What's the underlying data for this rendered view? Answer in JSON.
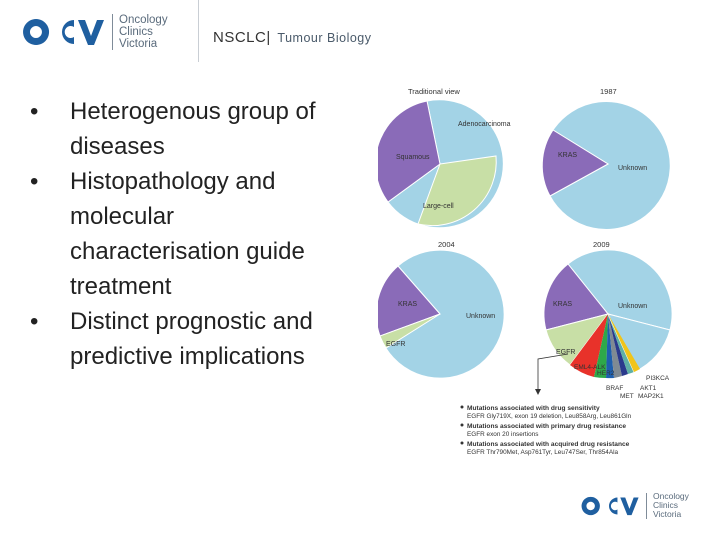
{
  "brand": {
    "logo_letters": "OCV",
    "name_lines": [
      "Oncology",
      "Clinics",
      "Victoria"
    ],
    "primary_color": "#1f5fa0"
  },
  "header": {
    "title": "NSCLC|",
    "subtitle": "Tumour Biology"
  },
  "bullets": [
    "Heterogenous group of diseases",
    "Histopathology and molecular characterisation guide treatment",
    "Distinct prognostic and predictive implications"
  ],
  "figure": {
    "panels": [
      {
        "label": "Traditional view",
        "slices": [
          {
            "name": "Adenocarcinoma",
            "color": "#a3d3e6"
          },
          {
            "name": "Squamous",
            "color": "#8a6bb8"
          },
          {
            "name": "Large-cell",
            "color": "#c8dfa6"
          }
        ]
      },
      {
        "label": "1987",
        "slices": [
          {
            "name": "KRAS",
            "color": "#8a6bb8"
          },
          {
            "name": "Unknown",
            "color": "#a3d3e6"
          }
        ]
      },
      {
        "label": "2004",
        "slices": [
          {
            "name": "KRAS",
            "color": "#8a6bb8"
          },
          {
            "name": "EGFR",
            "color": "#c8dfa6"
          },
          {
            "name": "Unknown",
            "color": "#a3d3e6"
          }
        ]
      },
      {
        "label": "2009",
        "slices": [
          {
            "name": "KRAS",
            "color": "#8a6bb8"
          },
          {
            "name": "Unknown",
            "color": "#a3d3e6"
          },
          {
            "name": "EGFR",
            "color": "#c8dfa6"
          },
          {
            "name": "EML4-ALK",
            "color": "#e8322a"
          },
          {
            "name": "HER2",
            "color": "#2ea84a"
          },
          {
            "name": "BRAF",
            "color": "#1e5fae"
          },
          {
            "name": "MET",
            "color": "#7f8a93"
          },
          {
            "name": "AKT1",
            "color": "#2b3a8c"
          },
          {
            "name": "MAP2K1",
            "color": "#5fb0a6"
          },
          {
            "name": "PI3KCA",
            "color": "#f0c419"
          }
        ]
      }
    ],
    "legend": [
      {
        "text": "Mutations associated with drug sensitivity",
        "bold": true
      },
      {
        "text": "EGFR Gly719X, exon 19 deletion, Leu858Arg, Leu861Gln",
        "bold": false
      },
      {
        "text": "Mutations associated with primary drug resistance",
        "bold": true
      },
      {
        "text": "EGFR exon 20 insertions",
        "bold": false
      },
      {
        "text": "Mutations associated with acquired drug resistance",
        "bold": true
      },
      {
        "text": "EGFR Thr790Met, Asp761Tyr, Leu747Ser, Thr854Ala",
        "bold": false
      }
    ]
  }
}
